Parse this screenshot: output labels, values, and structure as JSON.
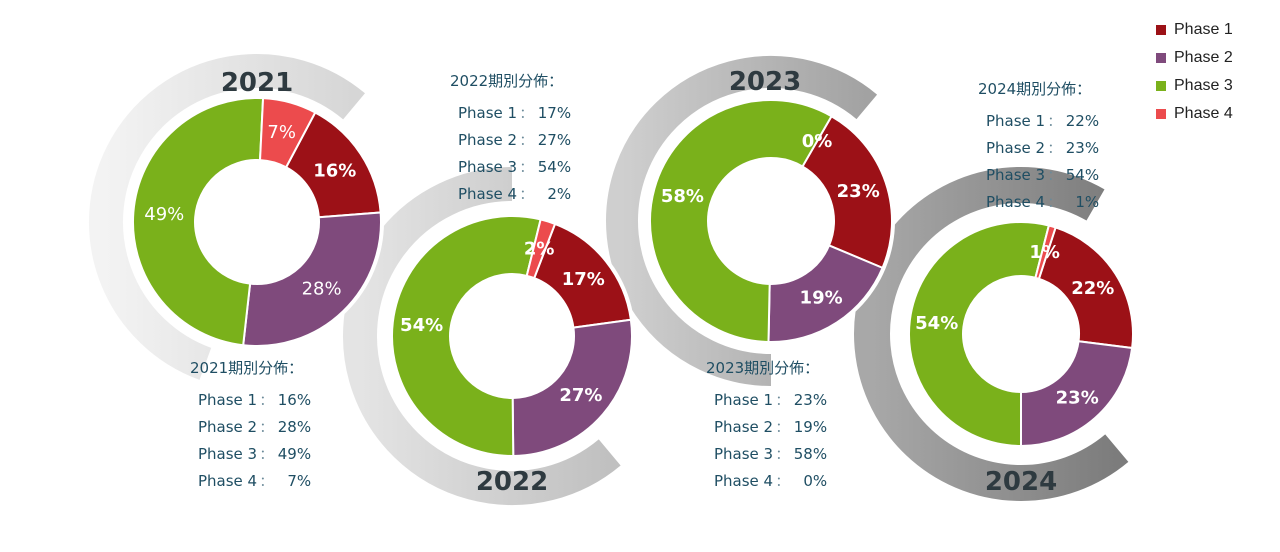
{
  "chart_data": {
    "type": "pie",
    "series_names": [
      "Phase 1",
      "Phase 2",
      "Phase 3",
      "Phase 4"
    ],
    "colors": [
      "#9c1117",
      "#7f4a7c",
      "#7ab11b",
      "#ec4b4d"
    ],
    "charts": [
      {
        "year": "2021",
        "values": [
          16,
          28,
          49,
          7
        ],
        "labels": [
          "16%",
          "28%",
          "49%",
          "7%"
        ]
      },
      {
        "year": "2022",
        "values": [
          17,
          27,
          54,
          2
        ],
        "labels": [
          "17%",
          "27%",
          "54%",
          "2%"
        ]
      },
      {
        "year": "2023",
        "values": [
          23,
          19,
          58,
          0
        ],
        "labels": [
          "23%",
          "19%",
          "58%",
          "0%"
        ]
      },
      {
        "year": "2024",
        "values": [
          22,
          23,
          54,
          1
        ],
        "labels": [
          "22%",
          "23%",
          "54%",
          "1%"
        ]
      }
    ]
  },
  "info_boxes": [
    {
      "title": "2021期別分佈：",
      "rows": [
        {
          "label": "Phase 1",
          "value": "16%"
        },
        {
          "label": "Phase 2",
          "value": "28%"
        },
        {
          "label": "Phase 3",
          "value": "49%"
        },
        {
          "label": "Phase 4",
          "value": "7%"
        }
      ]
    },
    {
      "title": "2022期別分佈：",
      "rows": [
        {
          "label": "Phase 1",
          "value": "17%"
        },
        {
          "label": "Phase 2",
          "value": "27%"
        },
        {
          "label": "Phase 3",
          "value": "54%"
        },
        {
          "label": "Phase 4",
          "value": "2%"
        }
      ]
    },
    {
      "title": "2023期別分佈：",
      "rows": [
        {
          "label": "Phase 1",
          "value": "23%"
        },
        {
          "label": "Phase 2",
          "value": "19%"
        },
        {
          "label": "Phase 3",
          "value": "58%"
        },
        {
          "label": "Phase 4",
          "value": "0%"
        }
      ]
    },
    {
      "title": "2024期別分佈：",
      "rows": [
        {
          "label": "Phase 1",
          "value": "22%"
        },
        {
          "label": "Phase 2",
          "value": "23%"
        },
        {
          "label": "Phase 3",
          "value": "54%"
        },
        {
          "label": "Phase 4",
          "value": "1%"
        }
      ]
    }
  ],
  "separator": "：",
  "legend": [
    {
      "label": "Phase 1",
      "color": "#9c1117"
    },
    {
      "label": "Phase 2",
      "color": "#7f4a7c"
    },
    {
      "label": "Phase 3",
      "color": "#7ab11b"
    },
    {
      "label": "Phase 4",
      "color": "#ec4b4d"
    }
  ]
}
